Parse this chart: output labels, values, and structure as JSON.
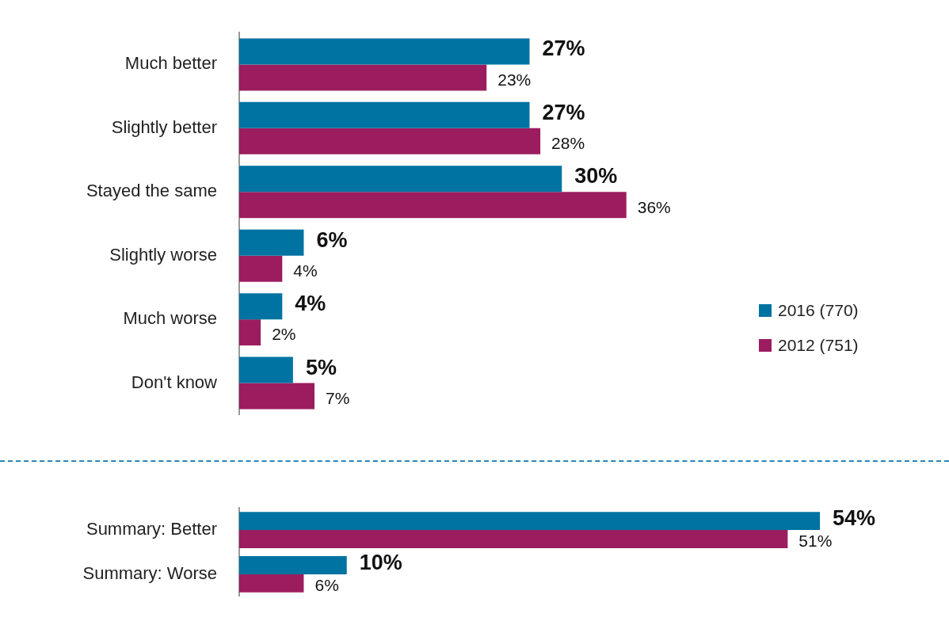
{
  "chart_data": [
    {
      "type": "bar",
      "orientation": "horizontal",
      "categories": [
        "Much better",
        "Slightly better",
        "Stayed the same",
        "Slightly worse",
        "Much worse",
        "Don't know"
      ],
      "xlim": [
        0,
        66
      ],
      "tick_labels": "y",
      "grid": false,
      "legend": "right",
      "series": [
        {
          "name": "2016 (770)",
          "color": "#0073a2",
          "values": [
            27,
            27,
            30,
            6,
            4,
            5
          ],
          "value_labels": [
            "27%",
            "27%",
            "30%",
            "6%",
            "4%",
            "5%"
          ]
        },
        {
          "name": "2012 (751)",
          "color": "#9c1d5f",
          "values": [
            23,
            28,
            36,
            4,
            2,
            7
          ],
          "value_labels": [
            "23%",
            "28%",
            "36%",
            "4%",
            "2%",
            "7%"
          ]
        }
      ]
    },
    {
      "type": "bar",
      "orientation": "horizontal",
      "categories": [
        "Summary: Better",
        "Summary: Worse"
      ],
      "xlim": [
        0,
        66
      ],
      "tick_labels": "y",
      "grid": false,
      "series": [
        {
          "color": "#0073a2",
          "values": [
            54,
            10
          ],
          "value_labels": [
            "54%",
            "10%"
          ]
        },
        {
          "color": "#9c1d5f",
          "values": [
            51,
            6
          ],
          "value_labels": [
            "51%",
            "6%"
          ]
        }
      ]
    }
  ]
}
